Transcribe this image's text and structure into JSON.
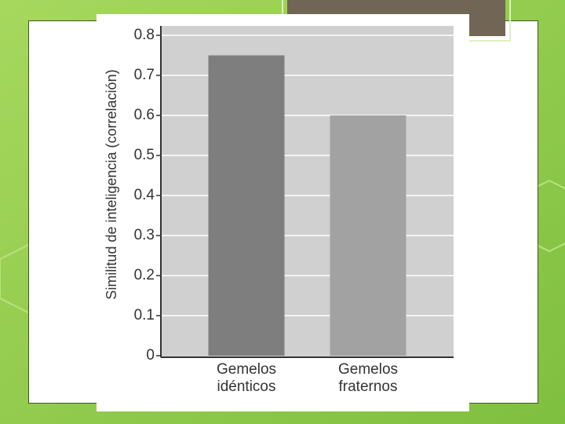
{
  "chart_data": {
    "type": "bar",
    "y_label": "Similitud de inteligencia (correlación)",
    "categories": [
      "Gemelos idénticos",
      "Gemelos fraternos"
    ],
    "values": [
      0.75,
      0.6
    ],
    "colors": [
      "#7e7e7e",
      "#a2a2a2"
    ],
    "ylim": [
      0,
      0.8
    ],
    "yticks": [
      0,
      0.1,
      0.2,
      0.3,
      0.4,
      0.5,
      0.6,
      0.7,
      0.8
    ],
    "grid": true
  }
}
